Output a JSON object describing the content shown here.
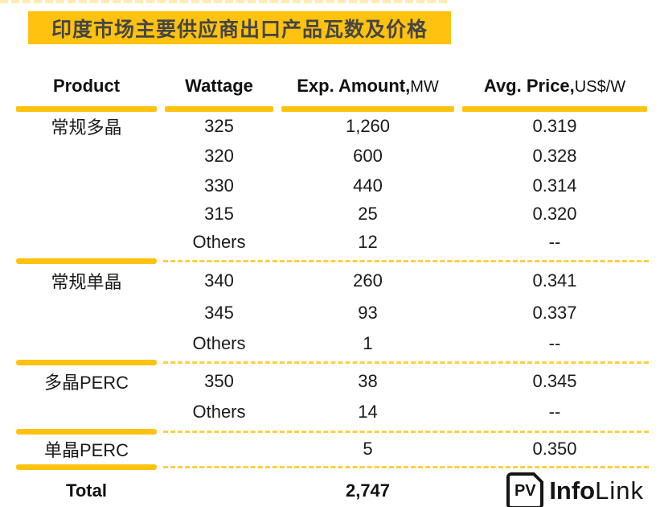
{
  "title": "印度市场主要供应商出口产品瓦数及价格",
  "header": {
    "cols": [
      {
        "label": "Product",
        "unit": ""
      },
      {
        "label": "Wattage",
        "unit": ""
      },
      {
        "label": "Exp. Amount,",
        "unit": "MW"
      },
      {
        "label": "Avg. Price,",
        "unit": "US$/W"
      }
    ]
  },
  "chart_data": {
    "type": "table",
    "title": "印度市场主要供应商出口产品瓦数及价格",
    "columns": [
      "Product",
      "Wattage",
      "Exp. Amount,MW",
      "Avg. Price,US$/W"
    ],
    "rows": [
      [
        "常规多晶",
        "325",
        "1,260",
        "0.319"
      ],
      [
        "",
        "320",
        "600",
        "0.328"
      ],
      [
        "",
        "330",
        "440",
        "0.314"
      ],
      [
        "",
        "315",
        "25",
        "0.320"
      ],
      [
        "",
        "Others",
        "12",
        "--"
      ],
      [
        "常规单晶",
        "340",
        "260",
        "0.341"
      ],
      [
        "",
        "345",
        "93",
        "0.337"
      ],
      [
        "",
        "Others",
        "1",
        "--"
      ],
      [
        "多晶PERC",
        "350",
        "38",
        "0.345"
      ],
      [
        "",
        "Others",
        "14",
        "--"
      ],
      [
        "单晶PERC",
        "",
        "5",
        "0.350"
      ]
    ],
    "group_products": [
      "常规多晶",
      "常规单晶",
      "多晶PERC",
      "单晶PERC"
    ],
    "total_exp_amount_mw": "2,747"
  },
  "total": {
    "label": "Total",
    "amount": "2,747"
  },
  "logo": {
    "pv": "PV",
    "info": "Info",
    "link": "Link"
  },
  "colors": {
    "accent_yellow": "#FFC20E",
    "dash_yellow": "#FFCF40",
    "title_text": "#454545",
    "body_text": "#1A1A1A",
    "logo_black": "#151515"
  }
}
